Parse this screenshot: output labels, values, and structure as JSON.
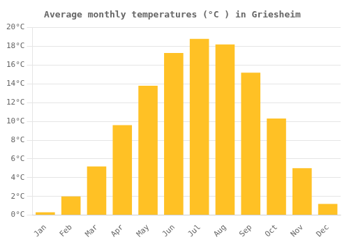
{
  "chart_data": {
    "type": "bar",
    "title": "Average monthly temperatures (°C ) in Griesheim",
    "categories": [
      "Jan",
      "Feb",
      "Mar",
      "Apr",
      "May",
      "Jun",
      "Jul",
      "Aug",
      "Sep",
      "Oct",
      "Nov",
      "Dec"
    ],
    "values": [
      0.3,
      2.0,
      5.2,
      9.6,
      13.8,
      17.3,
      18.8,
      18.2,
      15.2,
      10.3,
      5.0,
      1.2
    ],
    "color": "#FFC125",
    "ylim": [
      0,
      20
    ],
    "yticks": [
      {
        "value": 0,
        "label": "0°C"
      },
      {
        "value": 2,
        "label": "2°C"
      },
      {
        "value": 4,
        "label": "4°C"
      },
      {
        "value": 6,
        "label": "6°C"
      },
      {
        "value": 8,
        "label": "8°C"
      },
      {
        "value": 10,
        "label": "10°C"
      },
      {
        "value": 12,
        "label": "12°C"
      },
      {
        "value": 14,
        "label": "14°C"
      },
      {
        "value": 16,
        "label": "16°C"
      },
      {
        "value": 18,
        "label": "18°C"
      },
      {
        "value": 20,
        "label": "20°C"
      }
    ],
    "grid": true
  }
}
